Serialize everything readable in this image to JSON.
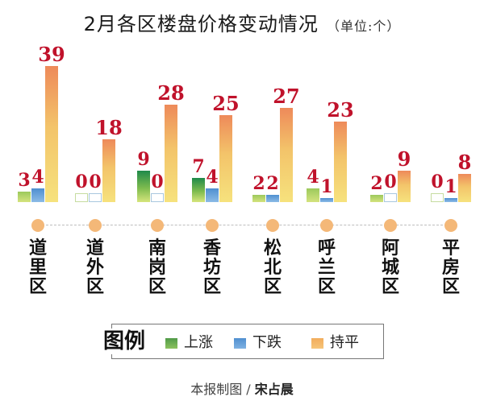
{
  "title": "2月各区楼盘价格变动情况",
  "unit": "（单位:个）",
  "legend": {
    "title": "图例",
    "items": [
      {
        "label": "上涨",
        "color": "#6aaa4f"
      },
      {
        "label": "下跌",
        "color": "#5b95d3"
      },
      {
        "label": "持平",
        "color": "#f2b468"
      }
    ]
  },
  "credit": {
    "prefix": "本报制图 / ",
    "author": "宋占晨"
  },
  "colors": {
    "up": "#9cc95c",
    "down": "#4f8fd0",
    "flat": "#f3c46a",
    "value_label": "#c0122b",
    "axis_dot": "#f4b878"
  },
  "chart_data": {
    "type": "bar",
    "title": "2月各区楼盘价格变动情况（单位:个）",
    "xlabel": "",
    "ylabel": "",
    "categories": [
      "道里区",
      "道外区",
      "南岗区",
      "香坊区",
      "松北区",
      "呼兰区",
      "阿城区",
      "平房区"
    ],
    "series": [
      {
        "name": "上涨",
        "values": [
          3,
          0,
          9,
          7,
          2,
          4,
          2,
          0
        ]
      },
      {
        "name": "下跌",
        "values": [
          4,
          0,
          0,
          4,
          2,
          1,
          0,
          1
        ]
      },
      {
        "name": "持平",
        "values": [
          39,
          18,
          28,
          25,
          27,
          23,
          9,
          8
        ]
      }
    ],
    "legend_position": "bottom",
    "grid": false,
    "ylim": [
      0,
      39
    ]
  }
}
